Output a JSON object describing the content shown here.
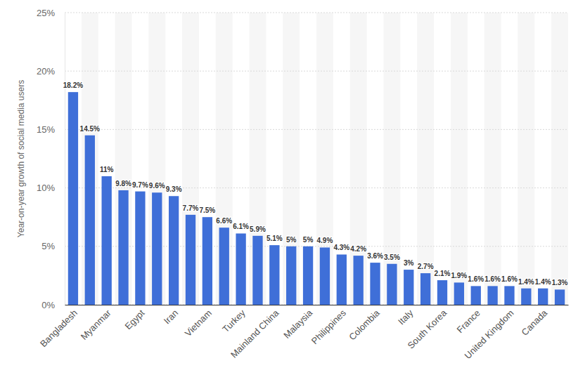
{
  "chart_data": {
    "type": "bar",
    "y_label": "Year-on-year growth of social media users",
    "categories": [
      "Bangladesh",
      null,
      "Myanmar",
      null,
      "Egypt",
      null,
      "Iran",
      null,
      "Vietnam",
      null,
      "Turkey",
      null,
      "Mainland China",
      null,
      "Malaysia",
      null,
      "Philippines",
      null,
      "Colombia",
      null,
      "Italy",
      null,
      "South Korea",
      null,
      "France",
      null,
      "United Kingdom",
      null,
      "Canada",
      null
    ],
    "values": [
      18.2,
      14.5,
      11,
      9.8,
      9.7,
      9.6,
      9.3,
      7.7,
      7.5,
      6.6,
      6.1,
      5.9,
      5.1,
      5,
      5,
      4.9,
      4.3,
      4.2,
      3.6,
      3.5,
      3,
      2.7,
      2.1,
      1.9,
      1.6,
      1.6,
      1.6,
      1.4,
      1.4,
      1.3
    ],
    "value_labels": [
      "18.2%",
      "14.5%",
      "11%",
      "9.8%",
      "9.7%",
      "9.6%",
      "9.3%",
      "7.7%",
      "7.5%",
      "6.6%",
      "6.1%",
      "5.9%",
      "5.1%",
      "5%",
      "5%",
      "4.9%",
      "4.3%",
      "4.2%",
      "3.6%",
      "3.5%",
      "3%",
      "2.7%",
      "2.1%",
      "1.9%",
      "1.6%",
      "1.6%",
      "1.6%",
      "1.4%",
      "1.4%",
      "1.3%"
    ],
    "color": "#3f6fd8",
    "ylim": [
      0,
      25
    ],
    "yticks": [
      {
        "value": 0,
        "label": "0%"
      },
      {
        "value": 5,
        "label": "5%"
      },
      {
        "value": 10,
        "label": "10%"
      },
      {
        "value": 15,
        "label": "15%"
      },
      {
        "value": 20,
        "label": "20%"
      },
      {
        "value": 25,
        "label": "25%"
      }
    ],
    "grid": true,
    "data_labels": true
  }
}
